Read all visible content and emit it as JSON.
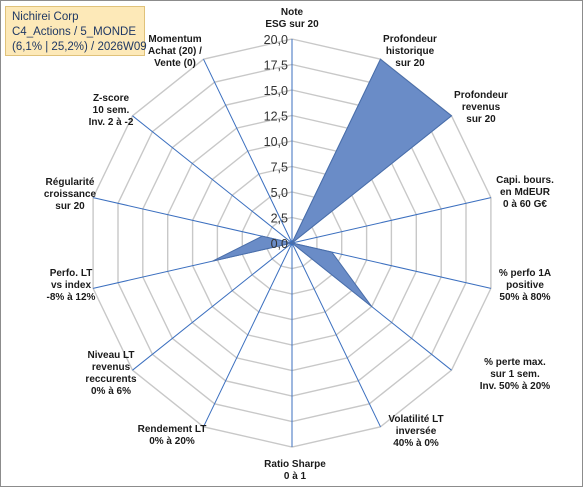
{
  "info": {
    "line1": "Nichirei Corp",
    "line2": "C4_Actions / 5_MONDE",
    "line3": "(6,1% | 25,2%) / 2026W09"
  },
  "chart_data": {
    "type": "radar",
    "rmax": 20,
    "ticks": [
      "0,0",
      "2,5",
      "5,0",
      "7,5",
      "10,0",
      "12,5",
      "15,0",
      "17,5",
      "20,0"
    ],
    "categories": [
      [
        "Note",
        "ESG sur 20"
      ],
      [
        "Profondeur",
        "historique",
        "sur 20"
      ],
      [
        "Profondeur",
        "revenus",
        "sur 20"
      ],
      [
        "Capi. bours.",
        "en MdEUR",
        "0 à 60 G€"
      ],
      [
        "% perfo 1A",
        "positive",
        "50% à 80%"
      ],
      [
        "% perte max.",
        "sur 1 sem.",
        "Inv. 50% à 20%"
      ],
      [
        "Volatilité LT",
        "inversée",
        "40% à 0%"
      ],
      [
        "Ratio Sharpe",
        "0 à 1"
      ],
      [
        "Rendement LT",
        "0% à 20%"
      ],
      [
        "Niveau LT",
        "revenus",
        "reccurents",
        "0% à 6%"
      ],
      [
        "Perfo. LT",
        "vs index",
        "-8% à 12%"
      ],
      [
        "Régularité",
        "croissance",
        "sur 20"
      ],
      [
        "Z-score",
        "10 sem.",
        "Inv. 2 à -2"
      ],
      [
        "Momentum",
        "Achat (20) /",
        "Vente (0)"
      ]
    ],
    "values": [
      0,
      20,
      20,
      0,
      4,
      10,
      0,
      0,
      0,
      0,
      8,
      3,
      0,
      0
    ],
    "colors": {
      "fill": "#6a8cc7",
      "stroke": "#4a6ea9",
      "grid": "#c8c8c8",
      "axis": "#3b6fbf"
    }
  }
}
